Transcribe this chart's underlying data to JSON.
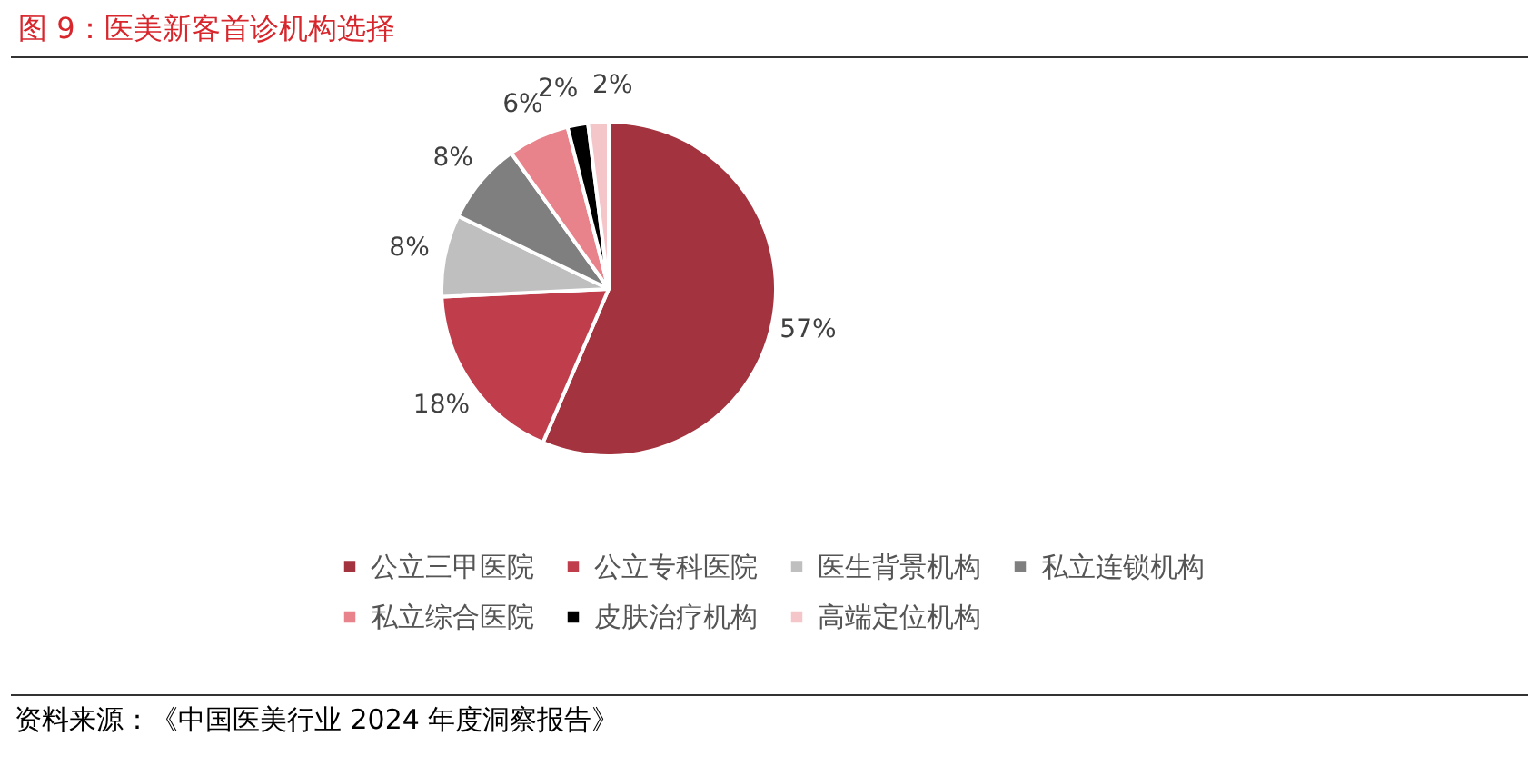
{
  "chart_data": {
    "type": "pie",
    "title": "图 9：医美新客首诊机构选择",
    "categories": [
      "公立三甲医院",
      "公立专科医院",
      "医生背景机构",
      "私立连锁机构",
      "私立综合医院",
      "皮肤治疗机构",
      "高端定位机构"
    ],
    "values": [
      57,
      18,
      8,
      8,
      6,
      2,
      2
    ],
    "value_labels": [
      "57%",
      "18%",
      "8%",
      "8%",
      "6%",
      "2%",
      "2%"
    ],
    "colors": [
      "#a3343f",
      "#c03d4c",
      "#bfbfbf",
      "#7f7f7f",
      "#e8838b",
      "#000000",
      "#f4c6ca"
    ],
    "legend": "bottom",
    "annotations": [
      "资料来源：《中国医美行业 2024 年度洞察报告》"
    ]
  }
}
